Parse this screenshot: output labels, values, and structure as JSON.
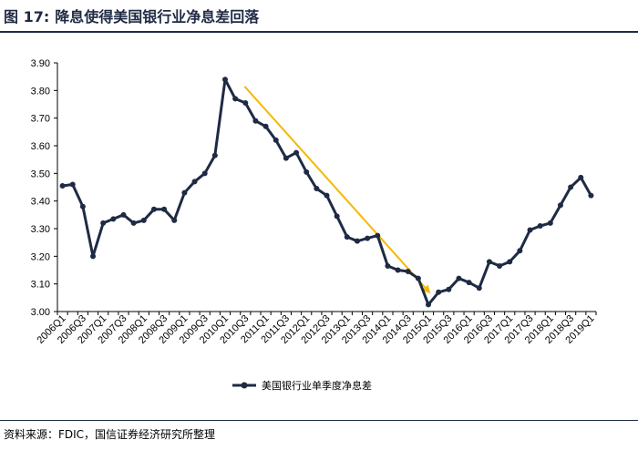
{
  "figure": {
    "number": "图 17:",
    "title": "降息使得美国银行业净息差回落",
    "source": "资料来源：FDIC，国信证券经济研究所整理"
  },
  "colors": {
    "series": "#1f2a44",
    "arrow": "#f5b800",
    "rule": "#1f2a44"
  },
  "chart_data": {
    "type": "line",
    "title": "",
    "xlabel": "",
    "ylabel": "",
    "ylim": [
      3.0,
      3.9
    ],
    "yticks": [
      "3.00",
      "3.10",
      "3.20",
      "3.30",
      "3.40",
      "3.50",
      "3.60",
      "3.70",
      "3.80",
      "3.90"
    ],
    "grid": false,
    "legend_position": "bottom-center",
    "x": [
      "2006Q1",
      "2006Q2",
      "2006Q3",
      "2006Q4",
      "2007Q1",
      "2007Q2",
      "2007Q3",
      "2007Q4",
      "2008Q1",
      "2008Q2",
      "2008Q3",
      "2008Q4",
      "2009Q1",
      "2009Q2",
      "2009Q3",
      "2009Q4",
      "2010Q1",
      "2010Q2",
      "2010Q3",
      "2010Q4",
      "2011Q1",
      "2011Q2",
      "2011Q3",
      "2011Q4",
      "2012Q1",
      "2012Q2",
      "2012Q3",
      "2012Q4",
      "2013Q1",
      "2013Q2",
      "2013Q3",
      "2013Q4",
      "2014Q1",
      "2014Q2",
      "2014Q3",
      "2014Q4",
      "2015Q1",
      "2015Q2",
      "2015Q3",
      "2015Q4",
      "2016Q1",
      "2016Q2",
      "2016Q3",
      "2016Q4",
      "2017Q1",
      "2017Q2",
      "2017Q3",
      "2017Q4",
      "2018Q1",
      "2018Q2",
      "2018Q3",
      "2018Q4",
      "2019Q1"
    ],
    "x_tick_labels": [
      "2006Q1",
      "2006Q3",
      "2007Q1",
      "2007Q3",
      "2008Q1",
      "2008Q3",
      "2009Q1",
      "2009Q3",
      "2010Q1",
      "2010Q3",
      "2011Q1",
      "2011Q3",
      "2012Q1",
      "2012Q3",
      "2013Q1",
      "2013Q3",
      "2014Q1",
      "2014Q3",
      "2015Q1",
      "2015Q3",
      "2016Q1",
      "2016Q3",
      "2017Q1",
      "2017Q3",
      "2018Q1",
      "2018Q3",
      "2019Q1"
    ],
    "series": [
      {
        "name": "美国银行业单季度净息差",
        "values": [
          3.455,
          3.46,
          3.38,
          3.2,
          3.32,
          3.335,
          3.35,
          3.32,
          3.33,
          3.37,
          3.37,
          3.33,
          3.43,
          3.47,
          3.5,
          3.565,
          3.84,
          3.77,
          3.755,
          3.69,
          3.67,
          3.62,
          3.555,
          3.575,
          3.505,
          3.445,
          3.42,
          3.345,
          3.27,
          3.255,
          3.265,
          3.275,
          3.165,
          3.15,
          3.145,
          3.12,
          3.025,
          3.07,
          3.08,
          3.12,
          3.105,
          3.085,
          3.18,
          3.165,
          3.18,
          3.22,
          3.295,
          3.31,
          3.32,
          3.385,
          3.45,
          3.485,
          3.42
        ]
      }
    ],
    "annotation": {
      "type": "trend-arrow",
      "from_x": "2010Q3",
      "from_y": 3.815,
      "to_x": "2015Q1",
      "to_y": 3.07
    }
  }
}
